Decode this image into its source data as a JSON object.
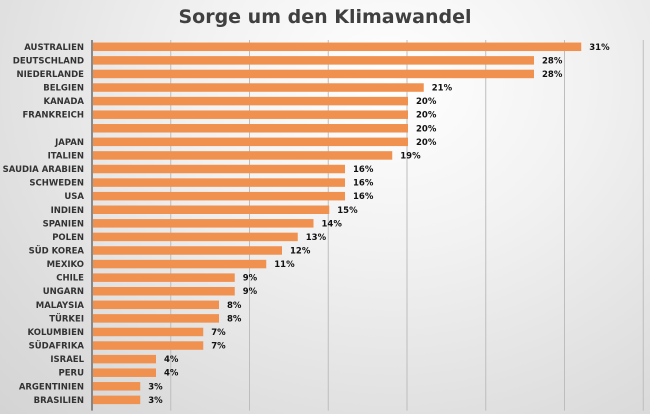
{
  "chart_data": {
    "type": "bar",
    "orientation": "horizontal",
    "title": "Sorge um den Klimawandel",
    "xlabel": "",
    "ylabel": "",
    "xlim": [
      0,
      35
    ],
    "grid": true,
    "bar_color": "#f0914f",
    "categories": [
      "AUSTRALIEN",
      "DEUTSCHLAND",
      "NIEDERLANDE",
      "BELGIEN",
      "KANADA",
      "FRANKREICH",
      "",
      "JAPAN",
      "ITALIEN",
      "SAUDIA ARABIEN",
      "SCHWEDEN",
      "USA",
      "INDIEN",
      "SPANIEN",
      "POLEN",
      "SÜD KOREA",
      "MEXIKO",
      "CHILE",
      "UNGARN",
      "MALAYSIA",
      "TÜRKEI",
      "KOLUMBIEN",
      "SÜDAFRIKA",
      "ISRAEL",
      "PERU",
      "ARGENTINIEN",
      "BRASILIEN"
    ],
    "values": [
      31,
      28,
      28,
      21,
      20,
      20,
      20,
      20,
      19,
      16,
      16,
      16,
      15,
      14,
      13,
      12,
      11,
      9,
      9,
      8,
      8,
      7,
      7,
      4,
      4,
      3,
      3
    ],
    "data_labels": [
      "31%",
      "28%",
      "28%",
      "21%",
      "20%",
      "20%",
      "20%",
      "20%",
      "19%",
      "16%",
      "16%",
      "16%",
      "15%",
      "14%",
      "13%",
      "12%",
      "11%",
      "9%",
      "9%",
      "8%",
      "8%",
      "7%",
      "7%",
      "4%",
      "4%",
      "3%",
      "3%"
    ]
  }
}
